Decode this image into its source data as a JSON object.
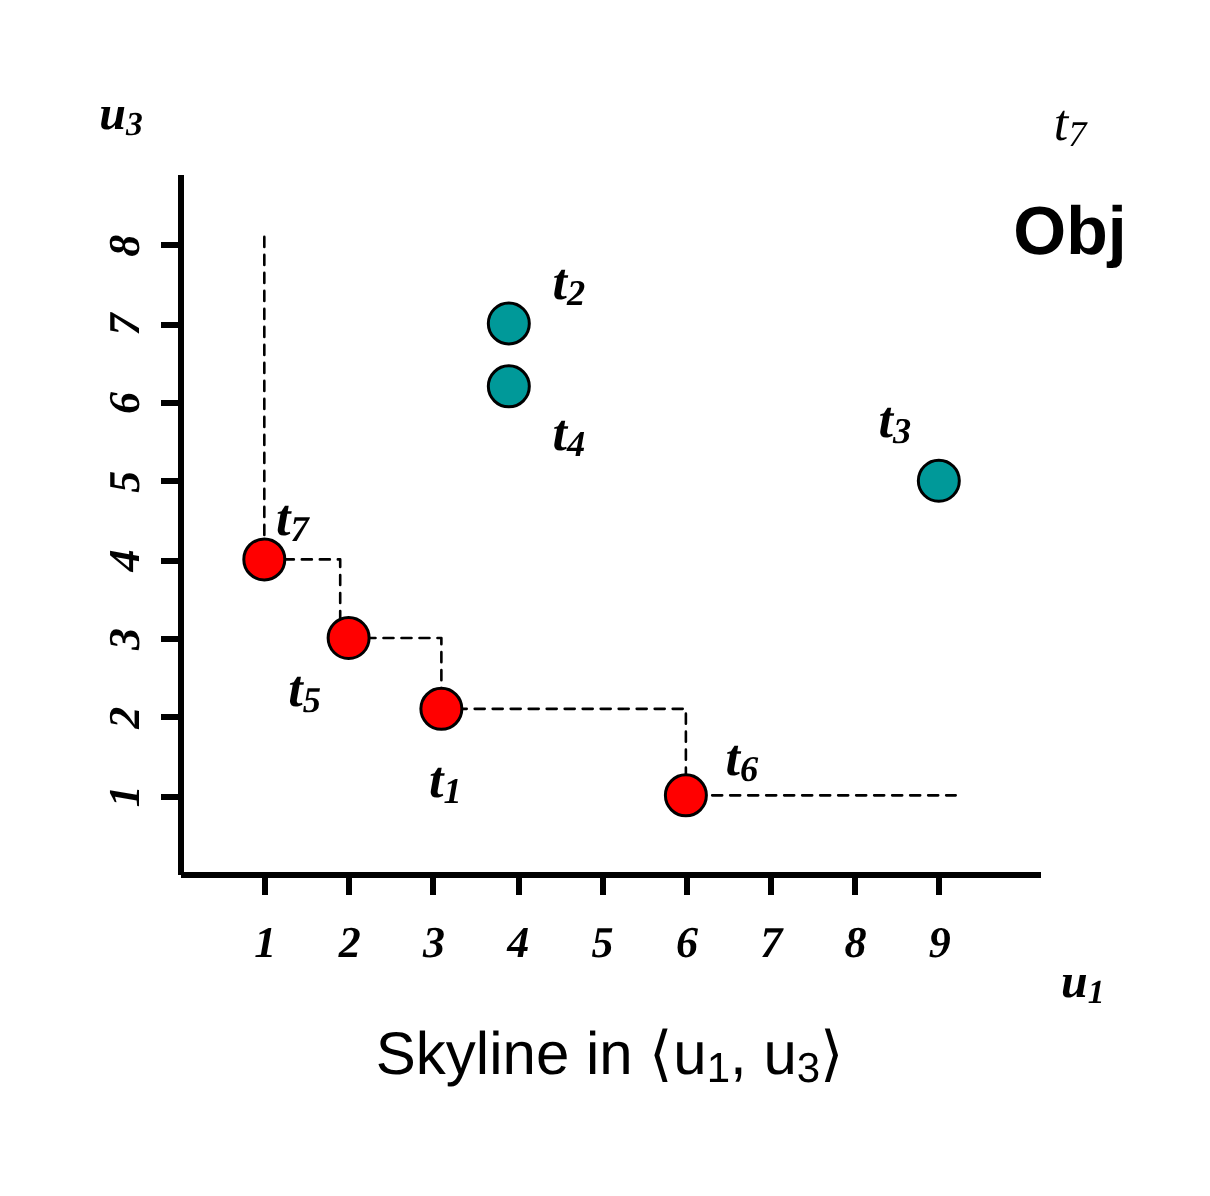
{
  "chart_data": {
    "type": "scatter",
    "title": "Skyline in ⟨u$_{1}$, u$_{3}$⟩",
    "xlabel": "u$_{1}$",
    "ylabel": "u$_{3}$",
    "xlim": [
      0,
      10.2
    ],
    "ylim": [
      0,
      8.9
    ],
    "xticks": [
      1,
      2,
      3,
      4,
      5,
      6,
      7,
      8,
      9
    ],
    "yticks": [
      1,
      2,
      3,
      4,
      5,
      6,
      7,
      8
    ],
    "series": [
      {
        "type": "line",
        "line_style": "dashed",
        "marker": "none",
        "color": "#000000",
        "x": [
          1,
          1,
          1.9,
          1.9,
          null,
          2.2,
          3.1,
          3.1,
          6,
          6,
          9.2
        ],
        "values": [
          8.1,
          4,
          4,
          3.25,
          null,
          3,
          3,
          2.1,
          2.1,
          1,
          1
        ]
      },
      {
        "marker": "circle",
        "color": "#ff0000",
        "x": [
          1,
          2,
          3.1,
          6
        ],
        "values": [
          4,
          3,
          2.1,
          1
        ]
      },
      {
        "marker": "circle",
        "color": "#009999",
        "x": [
          3.9,
          3.9,
          9
        ],
        "values": [
          7,
          6.2,
          5
        ]
      }
    ],
    "annotations": [
      {
        "text": "t$_{7}$",
        "x": 1,
        "y": 4
      },
      {
        "text": "t$_{5}$",
        "x": 2,
        "y": 3
      },
      {
        "text": "t$_{1}$",
        "x": 3.1,
        "y": 2.1
      },
      {
        "text": "t$_{6}$",
        "x": 6,
        "y": 1
      },
      {
        "text": "t$_{2}$",
        "x": 3.9,
        "y": 7
      },
      {
        "text": "t$_{4}$",
        "x": 3.9,
        "y": 6.2
      },
      {
        "text": "t$_{3}$",
        "x": 9,
        "y": 5
      },
      "t$_{7}$",
      "Obj"
    ]
  }
}
